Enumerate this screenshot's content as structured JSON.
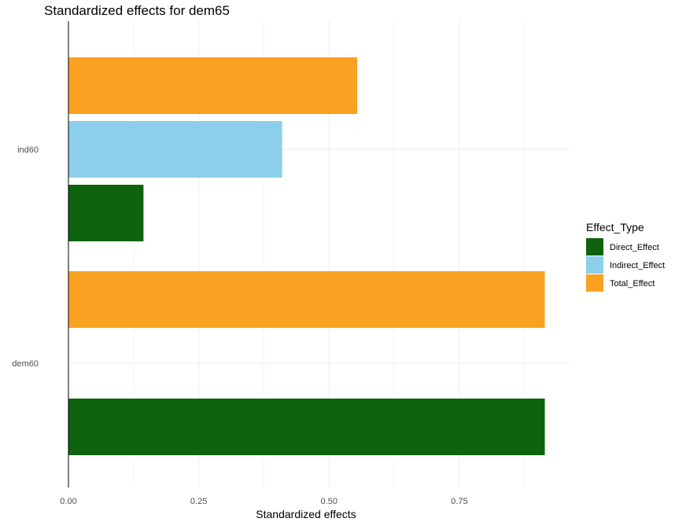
{
  "chart_data": {
    "type": "bar",
    "orientation": "horizontal",
    "grouping": "dodge",
    "title": "Standardized effects for dem65",
    "xlabel": "Standardized effects",
    "ylabel": "",
    "categories": [
      "ind60",
      "dem60"
    ],
    "series": [
      {
        "name": "Direct_Effect",
        "color": "#0e630e",
        "values": [
          0.144,
          0.914
        ]
      },
      {
        "name": "Indirect_Effect",
        "color": "#8ccfeb",
        "values": [
          0.41,
          null
        ]
      },
      {
        "name": "Total_Effect",
        "color": "#f9a120",
        "values": [
          0.554,
          0.914
        ]
      }
    ],
    "xlim": [
      0,
      0.96
    ],
    "xticks": [
      {
        "value": 0,
        "label": "0.00"
      },
      {
        "value": 0.25,
        "label": "0.25"
      },
      {
        "value": 0.5,
        "label": "0.50"
      },
      {
        "value": 0.75,
        "label": "0.75"
      }
    ],
    "x_minor_ticks": [
      0.125,
      0.375,
      0.625,
      0.875
    ],
    "grid": true,
    "legend": {
      "title": "Effect_Type",
      "position": "right"
    }
  }
}
